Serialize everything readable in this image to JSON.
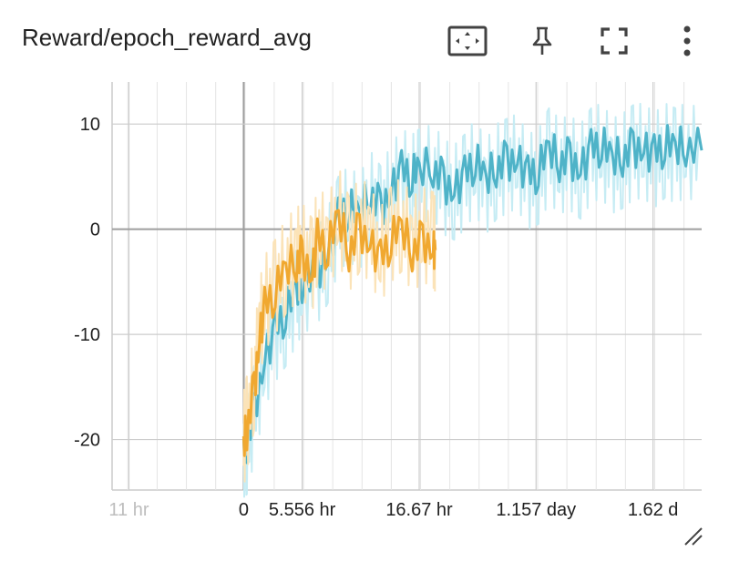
{
  "header": {
    "title": "Reward/epoch_reward_avg",
    "icons": [
      "fit-domain-icon",
      "pin-icon",
      "fullscreen-icon",
      "more-vert-icon"
    ]
  },
  "colors": {
    "series_teal": "#4fb3c8",
    "series_teal_raw": "#c6ecf4",
    "series_orange": "#f0a830",
    "series_orange_raw": "#fbe3b8",
    "grid": "#cccccc",
    "axis_zero": "#9e9e9e"
  },
  "chart_data": {
    "type": "line",
    "title": "Reward/epoch_reward_avg",
    "xlabel": "",
    "ylabel": "",
    "x_axis_kind": "relative time",
    "x_tick_labels": [
      "11 hr",
      "0",
      "5.556 hr",
      "16.67 hr",
      "1.157 day",
      "1.62 d"
    ],
    "y_tick_labels": [
      "10",
      "0",
      "-10",
      "-20"
    ],
    "xlim_hours": [
      -12.5,
      43.5
    ],
    "ylim": [
      -24.8,
      14
    ],
    "grid": true,
    "legend": "none",
    "series": [
      {
        "color": "#4fb3c8",
        "x_hours": [
          0,
          0.3,
          1,
          2,
          3,
          4,
          5,
          5.556,
          7,
          8,
          9,
          10,
          11,
          12,
          13,
          14,
          15,
          16,
          16.67,
          18,
          19,
          20,
          21,
          22,
          23,
          24,
          25,
          26,
          27,
          28,
          29,
          30,
          31,
          32,
          33,
          34,
          35,
          36,
          37,
          38,
          39,
          40,
          41,
          42,
          43.5
        ],
        "values": [
          -20.5,
          -20.2,
          -17,
          -12,
          -9.5,
          -8,
          -6,
          -5,
          -4,
          -2,
          1,
          2,
          1,
          3.5,
          2,
          4,
          5.5,
          5,
          5.5,
          6,
          4.5,
          4,
          5,
          6.5,
          4.5,
          6,
          6.5,
          7,
          5,
          5.5,
          7.5,
          6.5,
          6.8,
          6,
          7.5,
          8,
          6.5,
          7,
          7.8,
          8,
          7,
          8,
          7.5,
          8,
          7.5
        ]
      },
      {
        "color": "#f0a830",
        "x_hours": [
          0,
          0.3,
          1,
          1.5,
          2,
          3,
          4,
          5,
          5.556,
          6.5,
          7,
          8,
          9,
          10,
          11,
          12,
          13,
          14,
          15,
          16,
          17,
          18,
          18.2
        ],
        "values": [
          -20.5,
          -19,
          -15,
          -10,
          -7.5,
          -6,
          -4,
          -3,
          -2.5,
          -4,
          -1,
          -2,
          1,
          -2,
          0,
          -1,
          -3,
          -1,
          0,
          -2,
          -1,
          -1.5,
          -2
        ]
      }
    ]
  }
}
